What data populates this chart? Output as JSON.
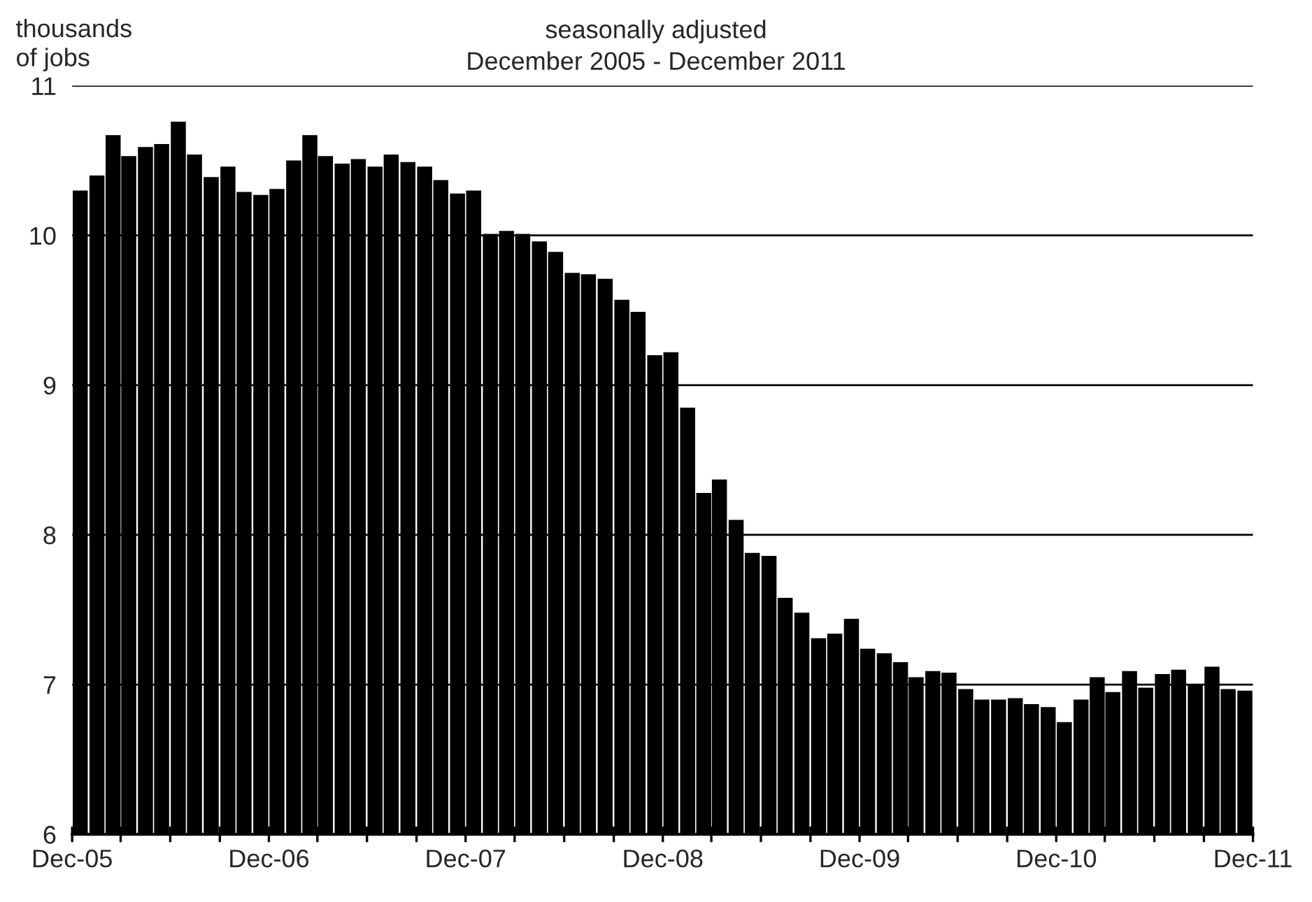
{
  "chart_data": {
    "type": "bar",
    "title": "seasonally adjusted",
    "subtitle": "December 2005 - December 2011",
    "ylabel": "thousands\nof jobs",
    "x": [
      "2005-12-16",
      "2006-01-16",
      "2006-02-15",
      "2006-03-16",
      "2006-04-16",
      "2006-05-16",
      "2006-06-16",
      "2006-07-16",
      "2006-08-16",
      "2006-09-16",
      "2006-10-16",
      "2006-11-16",
      "2006-12-16",
      "2007-01-16",
      "2007-02-15",
      "2007-03-16",
      "2007-04-16",
      "2007-05-16",
      "2007-06-16",
      "2007-07-16",
      "2007-08-16",
      "2007-09-16",
      "2007-10-16",
      "2007-11-16",
      "2007-12-16",
      "2008-01-16",
      "2008-02-15",
      "2008-03-16",
      "2008-04-16",
      "2008-05-16",
      "2008-06-16",
      "2008-07-16",
      "2008-08-16",
      "2008-09-16",
      "2008-10-16",
      "2008-11-16",
      "2008-12-16",
      "2009-01-16",
      "2009-02-15",
      "2009-03-16",
      "2009-04-16",
      "2009-05-16",
      "2009-06-16",
      "2009-07-16",
      "2009-08-16",
      "2009-09-16",
      "2009-10-16",
      "2009-11-16",
      "2009-12-16",
      "2010-01-16",
      "2010-02-15",
      "2010-03-16",
      "2010-04-16",
      "2010-05-16",
      "2010-06-16",
      "2010-07-16",
      "2010-08-16",
      "2010-09-16",
      "2010-10-16",
      "2010-11-16",
      "2010-12-16",
      "2011-01-16",
      "2011-02-15",
      "2011-03-16",
      "2011-04-16",
      "2011-05-16",
      "2011-06-16",
      "2011-07-16",
      "2011-08-16",
      "2011-09-16",
      "2011-10-16",
      "2011-11-16"
    ],
    "values": [
      10.3,
      10.4,
      10.67,
      10.53,
      10.59,
      10.61,
      10.76,
      10.54,
      10.39,
      10.46,
      10.29,
      10.27,
      10.31,
      10.5,
      10.67,
      10.53,
      10.48,
      10.51,
      10.46,
      10.54,
      10.49,
      10.46,
      10.37,
      10.28,
      10.3,
      10.01,
      10.03,
      10.01,
      9.96,
      9.89,
      9.75,
      9.74,
      9.71,
      9.57,
      9.49,
      9.2,
      9.22,
      8.85,
      8.28,
      8.37,
      8.1,
      7.88,
      7.86,
      7.58,
      7.48,
      7.31,
      7.34,
      7.44,
      7.24,
      7.21,
      7.15,
      7.05,
      7.09,
      7.08,
      6.97,
      6.9,
      6.9,
      6.91,
      6.87,
      6.85,
      6.75,
      6.9,
      7.05,
      6.95,
      7.09,
      6.98,
      7.07,
      7.1,
      7.0,
      7.12,
      6.97,
      6.96
    ],
    "color": "#000000",
    "xlim": [
      "2005-12-01",
      "2011-12-01"
    ],
    "xticks": [
      {
        "value": "2005-12-01",
        "label": "Dec-05"
      },
      {
        "value": "2006-03-01",
        "label": null
      },
      {
        "value": "2006-06-01",
        "label": null
      },
      {
        "value": "2006-09-01",
        "label": null
      },
      {
        "value": "2006-12-01",
        "label": "Dec-06"
      },
      {
        "value": "2007-03-01",
        "label": null
      },
      {
        "value": "2007-06-01",
        "label": null
      },
      {
        "value": "2007-09-01",
        "label": null
      },
      {
        "value": "2007-12-01",
        "label": "Dec-07"
      },
      {
        "value": "2008-03-01",
        "label": null
      },
      {
        "value": "2008-06-01",
        "label": null
      },
      {
        "value": "2008-09-01",
        "label": null
      },
      {
        "value": "2008-12-01",
        "label": "Dec-08"
      },
      {
        "value": "2009-03-01",
        "label": null
      },
      {
        "value": "2009-06-01",
        "label": null
      },
      {
        "value": "2009-09-01",
        "label": null
      },
      {
        "value": "2009-12-01",
        "label": "Dec-09"
      },
      {
        "value": "2010-03-01",
        "label": null
      },
      {
        "value": "2010-06-01",
        "label": null
      },
      {
        "value": "2010-09-01",
        "label": null
      },
      {
        "value": "2010-12-01",
        "label": "Dec-10"
      },
      {
        "value": "2011-03-01",
        "label": null
      },
      {
        "value": "2011-06-01",
        "label": null
      },
      {
        "value": "2011-09-01",
        "label": null
      },
      {
        "value": "2011-12-01",
        "label": "Dec-11"
      }
    ],
    "ylim": [
      6,
      11
    ],
    "yticks": [
      6,
      7,
      8,
      9,
      10,
      11
    ],
    "grid": "y"
  }
}
